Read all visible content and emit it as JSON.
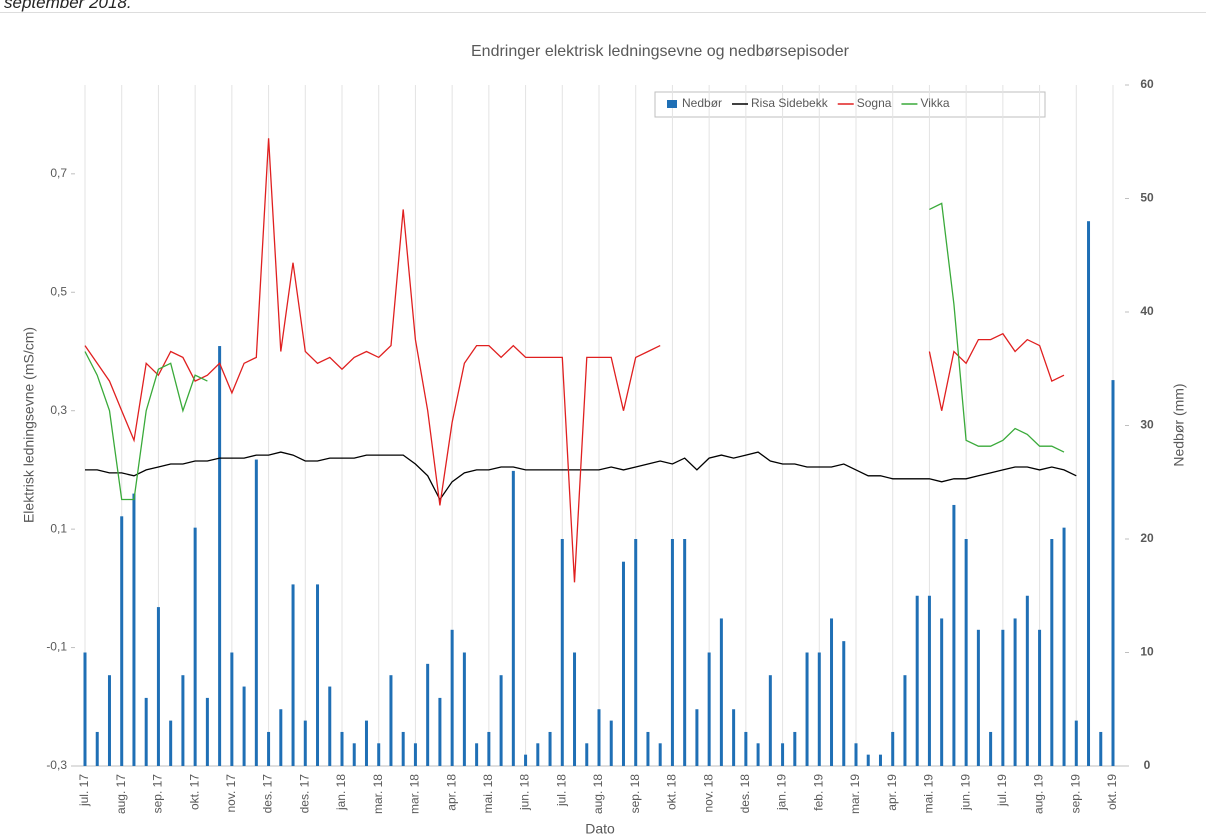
{
  "caption": "september 2018.",
  "chart_data": {
    "type": "line",
    "title": "Endringer elektrisk ledningsevne og nedbørsepisoder",
    "y_label": "Elektrisk ledningsevne (mS/cm)",
    "y2_label": "Nedbør (mm)",
    "x_label": "Dato",
    "grid": "x",
    "legend": "top-right",
    "ylim": [
      -0.3,
      0.85
    ],
    "yticks": [
      {
        "value": -0.3,
        "label": "-0,3"
      },
      {
        "value": -0.1,
        "label": "-0,1"
      },
      {
        "value": 0.1,
        "label": "0,1"
      },
      {
        "value": 0.3,
        "label": "0,3"
      },
      {
        "value": 0.5,
        "label": "0,5"
      },
      {
        "value": 0.7,
        "label": "0,7"
      }
    ],
    "y2lim": [
      0,
      60
    ],
    "y2ticks": [
      0,
      10,
      20,
      30,
      40,
      50,
      60
    ],
    "categories": [
      "jul. 17",
      null,
      null,
      "aug. 17",
      null,
      null,
      "sep. 17",
      null,
      null,
      "okt. 17",
      null,
      null,
      "nov. 17",
      null,
      null,
      "des. 17",
      null,
      null,
      "des. 17",
      null,
      null,
      "jan. 18",
      null,
      null,
      "mar. 18",
      null,
      null,
      "mar. 18",
      null,
      null,
      "apr. 18",
      null,
      null,
      "mai. 18",
      null,
      null,
      "jun. 18",
      null,
      null,
      "jul. 18",
      null,
      null,
      "aug. 18",
      null,
      null,
      "sep. 18",
      null,
      null,
      "okt. 18",
      null,
      null,
      "nov. 18",
      null,
      null,
      "des. 18",
      null,
      null,
      "jan. 19",
      null,
      null,
      "feb. 19",
      null,
      null,
      "mar. 19",
      null,
      null,
      "apr. 19",
      null,
      null,
      "mai. 19",
      null,
      null,
      "jun. 19",
      null,
      null,
      "jul. 19",
      null,
      null,
      "aug. 19",
      null,
      null,
      "sep. 19",
      null,
      null,
      "okt. 19"
    ],
    "series": [
      {
        "name": "Nedbør",
        "type": "bar",
        "axis": "y2",
        "color": "#1f6fb5",
        "values": [
          10,
          3,
          8,
          22,
          24,
          6,
          14,
          4,
          8,
          21,
          6,
          37,
          10,
          7,
          27,
          3,
          5,
          16,
          4,
          16,
          7,
          3,
          2,
          4,
          2,
          8,
          3,
          2,
          9,
          6,
          12,
          10,
          2,
          3,
          8,
          26,
          1,
          2,
          3,
          20,
          10,
          2,
          5,
          4,
          18,
          20,
          3,
          2,
          20,
          20,
          5,
          10,
          13,
          5,
          3,
          2,
          8,
          2,
          3,
          10,
          10,
          13,
          11,
          2,
          1,
          1,
          3,
          8,
          15,
          15,
          13,
          23,
          20,
          12,
          3,
          12,
          13,
          15,
          12,
          20,
          21,
          4,
          48,
          3,
          34
        ]
      },
      {
        "name": "Risa Sidebekk",
        "type": "line",
        "color": "#000000",
        "values": [
          0.2,
          0.2,
          0.195,
          0.195,
          0.19,
          0.2,
          0.205,
          0.21,
          0.21,
          0.215,
          0.215,
          0.22,
          0.22,
          0.22,
          0.225,
          0.225,
          0.23,
          0.225,
          0.215,
          0.215,
          0.22,
          0.22,
          0.22,
          0.225,
          0.225,
          0.225,
          0.225,
          0.21,
          0.19,
          0.15,
          0.18,
          0.195,
          0.2,
          0.2,
          0.205,
          0.205,
          0.2,
          0.2,
          0.2,
          0.2,
          0.2,
          0.2,
          0.2,
          0.205,
          0.2,
          0.205,
          0.21,
          0.215,
          0.21,
          0.22,
          0.2,
          0.22,
          0.225,
          0.22,
          0.225,
          0.23,
          0.215,
          0.21,
          0.21,
          0.205,
          0.205,
          0.205,
          0.21,
          0.2,
          0.19,
          0.19,
          0.185,
          0.185,
          0.185,
          0.185,
          0.18,
          0.185,
          0.185,
          0.19,
          0.195,
          0.2,
          0.205,
          0.205,
          0.2,
          0.205,
          0.2,
          0.19,
          null,
          null,
          null
        ]
      },
      {
        "name": "Sogna",
        "type": "line",
        "color": "#e02020",
        "values": [
          0.41,
          0.38,
          0.35,
          0.3,
          0.25,
          0.38,
          0.36,
          0.4,
          0.39,
          0.35,
          0.36,
          0.38,
          0.33,
          0.38,
          0.39,
          0.76,
          0.4,
          0.55,
          0.4,
          0.38,
          0.39,
          0.37,
          0.39,
          0.4,
          0.39,
          0.41,
          0.64,
          0.42,
          0.3,
          0.14,
          0.28,
          0.38,
          0.41,
          0.41,
          0.39,
          0.41,
          0.39,
          0.39,
          0.39,
          0.39,
          0.01,
          0.39,
          0.39,
          0.39,
          0.3,
          0.39,
          0.4,
          0.41,
          null,
          null,
          null,
          null,
          null,
          null,
          null,
          null,
          null,
          null,
          null,
          null,
          null,
          null,
          null,
          null,
          null,
          null,
          null,
          null,
          null,
          0.4,
          0.3,
          0.4,
          0.38,
          0.42,
          0.42,
          0.43,
          0.4,
          0.42,
          0.41,
          0.35,
          0.36,
          null,
          null,
          null,
          null
        ]
      },
      {
        "name": "Vikka",
        "type": "line",
        "color": "#3aaa3a",
        "values": [
          0.4,
          0.36,
          0.3,
          0.15,
          0.15,
          0.3,
          0.37,
          0.38,
          0.3,
          0.36,
          0.35,
          null,
          null,
          null,
          null,
          null,
          null,
          null,
          null,
          null,
          null,
          null,
          null,
          null,
          null,
          null,
          null,
          null,
          null,
          null,
          null,
          null,
          null,
          null,
          null,
          null,
          null,
          null,
          null,
          null,
          null,
          null,
          null,
          null,
          null,
          null,
          null,
          null,
          null,
          null,
          null,
          null,
          null,
          null,
          null,
          null,
          null,
          null,
          null,
          null,
          null,
          null,
          null,
          null,
          null,
          null,
          null,
          null,
          null,
          0.64,
          0.65,
          0.48,
          0.25,
          0.24,
          0.24,
          0.25,
          0.27,
          0.26,
          0.24,
          0.24,
          0.23,
          null,
          null,
          null,
          null
        ]
      }
    ]
  }
}
